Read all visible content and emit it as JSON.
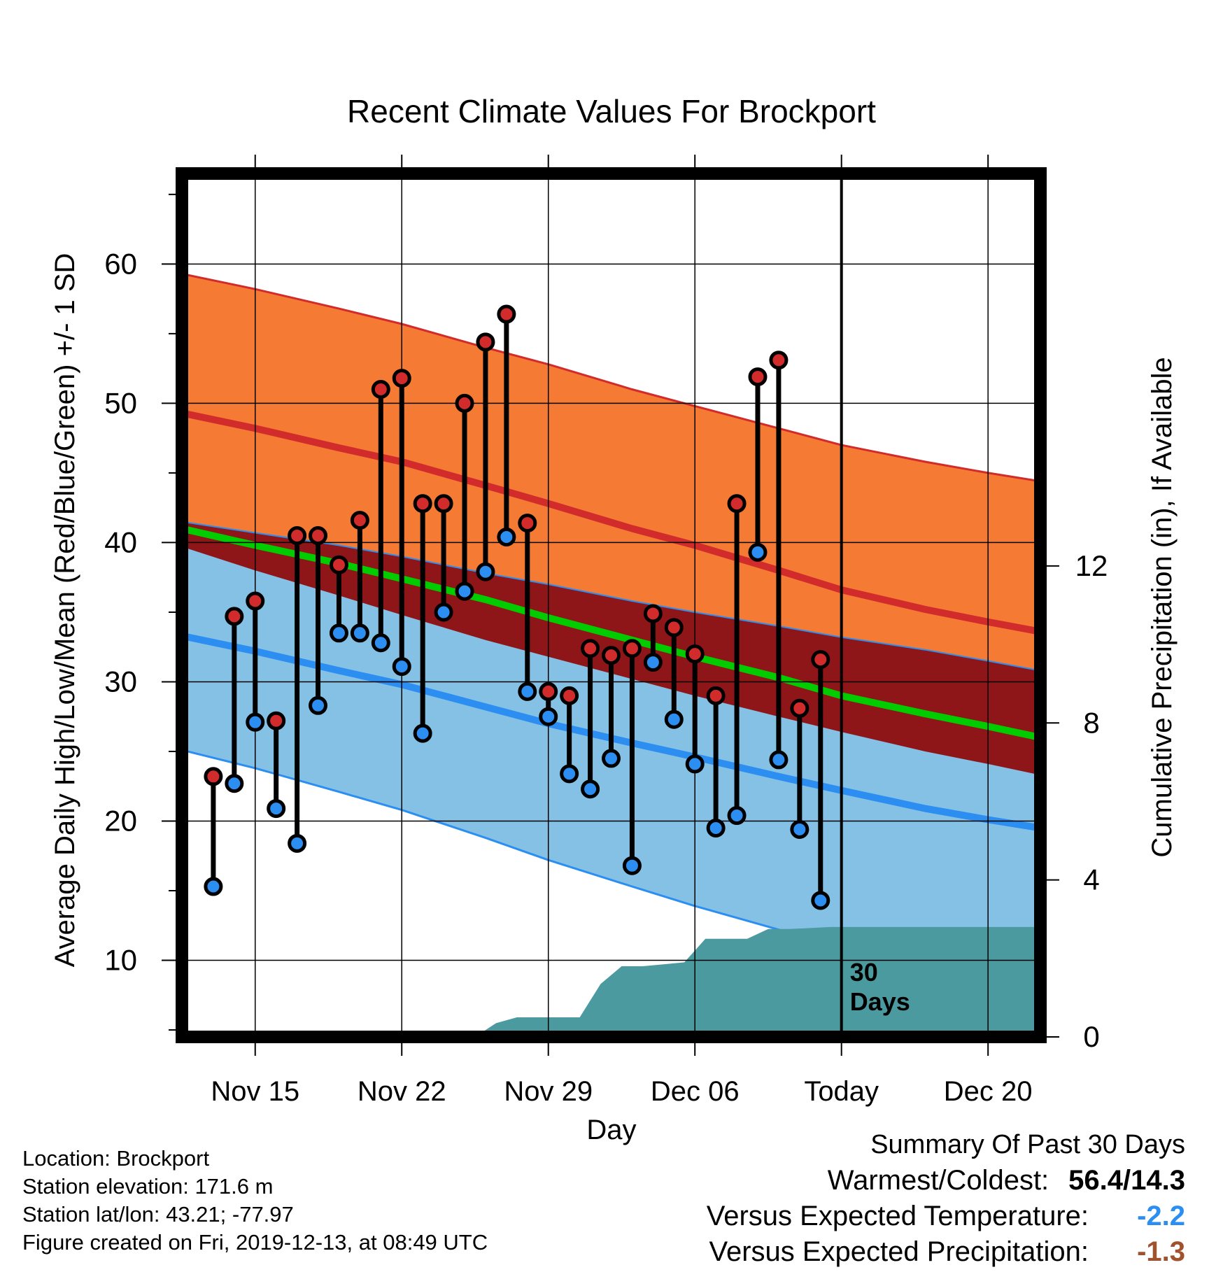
{
  "chart_data": {
    "type": "line",
    "title": "Recent Climate Values For Brockport",
    "xlabel": "Day",
    "ylabel": "Average Daily High/Low/Mean (Red/Blue/Green) +/- 1 SD",
    "ylabel_right": "Cumulative Precipitation (in), If Available",
    "x_ticks": [
      "Nov 15",
      "Nov 22",
      "Nov 29",
      "Dec 06",
      "Today",
      "Dec 20"
    ],
    "x_tick_days": [
      3,
      10,
      17,
      24,
      31,
      38
    ],
    "xlim_days": [
      -0.5,
      40.5
    ],
    "ylim": [
      4.5,
      66.5
    ],
    "y_ticks": [
      10,
      20,
      30,
      40,
      50,
      60
    ],
    "ylim_right": [
      0,
      22.0
    ],
    "y_ticks_right": [
      0,
      4,
      8,
      12
    ],
    "grid": true,
    "today_day": 31,
    "today_label": "30\nDays",
    "colors": {
      "high_band": "#f57a33",
      "high_line": "#d12b2b",
      "low_band": "#85c1e5",
      "low_line": "#2b8ef0",
      "overlap_band": "#8e1518",
      "mean_line": "#00cc00",
      "precip": "#4b9aa0",
      "high_marker": "#d12b2b",
      "low_marker": "#2b8ef0",
      "temp_anomaly": "#2b8ef0",
      "precip_anomaly": "#a0522d"
    },
    "normals": {
      "days": [
        -0.5,
        3,
        7,
        10,
        14,
        17,
        21,
        24,
        28,
        31,
        35,
        38,
        40.5
      ],
      "high_plus_sd": [
        59.3,
        58.2,
        56.8,
        55.7,
        54.0,
        52.8,
        51.0,
        49.8,
        48.2,
        47.0,
        45.8,
        45.0,
        44.4
      ],
      "high_mean": [
        49.3,
        48.2,
        46.8,
        45.8,
        44.1,
        42.8,
        41.0,
        39.8,
        38.0,
        36.6,
        35.2,
        34.3,
        33.6
      ],
      "high_minus_sd": [
        41.5,
        40.7,
        39.8,
        39.0,
        37.8,
        37.0,
        35.8,
        35.0,
        34.0,
        33.2,
        32.3,
        31.5,
        30.8
      ],
      "mean": [
        41.0,
        39.8,
        38.5,
        37.4,
        35.9,
        34.6,
        33.0,
        31.8,
        30.3,
        29.0,
        27.7,
        26.8,
        26.0
      ],
      "low_plus_sd": [
        39.7,
        38.0,
        36.2,
        34.8,
        33.0,
        31.8,
        30.2,
        29.0,
        27.5,
        26.4,
        25.0,
        24.1,
        23.3
      ],
      "low_mean": [
        33.3,
        32.2,
        30.8,
        29.8,
        28.2,
        27.0,
        25.6,
        24.6,
        23.2,
        22.2,
        20.9,
        20.1,
        19.5
      ],
      "low_minus_sd": [
        25.1,
        23.8,
        22.1,
        20.8,
        18.8,
        17.2,
        15.3,
        13.9,
        12.2,
        10.8,
        9.4,
        8.4,
        7.7
      ]
    },
    "series": [
      {
        "name": "High",
        "days": [
          1,
          2,
          3,
          4,
          5,
          6,
          7,
          8,
          9,
          10,
          11,
          12,
          13,
          14,
          15,
          16,
          17,
          18,
          19,
          20,
          21,
          22,
          23,
          24,
          25,
          26,
          27,
          28,
          29,
          30
        ],
        "values": [
          23.2,
          34.7,
          35.8,
          27.2,
          40.5,
          40.5,
          38.4,
          41.6,
          51.0,
          51.8,
          42.8,
          42.8,
          50.0,
          54.4,
          56.4,
          41.4,
          29.3,
          29.0,
          32.4,
          31.9,
          32.4,
          34.9,
          33.9,
          32.0,
          29.0,
          42.8,
          51.9,
          53.1,
          28.1,
          31.6
        ]
      },
      {
        "name": "Low",
        "days": [
          1,
          2,
          3,
          4,
          5,
          6,
          7,
          8,
          9,
          10,
          11,
          12,
          13,
          14,
          15,
          16,
          17,
          18,
          19,
          20,
          21,
          22,
          23,
          24,
          25,
          26,
          27,
          28,
          29,
          30
        ],
        "values": [
          15.3,
          22.7,
          27.1,
          20.9,
          18.4,
          28.3,
          33.5,
          33.5,
          32.8,
          31.1,
          26.3,
          35.0,
          36.5,
          37.9,
          40.4,
          29.3,
          27.5,
          23.4,
          22.3,
          24.5,
          16.8,
          31.4,
          27.3,
          24.1,
          19.5,
          20.4,
          39.3,
          24.4,
          19.4,
          14.3
        ]
      },
      {
        "name": "Cumulative Precipitation",
        "days": [
          -0.5,
          13.5,
          14.5,
          15.5,
          16.5,
          17,
          18.5,
          19.5,
          20.5,
          21.5,
          22.5,
          23.5,
          24.5,
          25.5,
          26.5,
          27.5,
          28.5,
          30.5,
          31,
          40.5
        ],
        "values": [
          0,
          0,
          0.35,
          0.5,
          0.5,
          0.5,
          0.5,
          1.35,
          1.8,
          1.8,
          1.85,
          1.9,
          2.5,
          2.5,
          2.5,
          2.75,
          2.75,
          2.8,
          2.8,
          2.8
        ]
      }
    ]
  },
  "info": {
    "location": "Location: Brockport",
    "elevation": "Station elevation: 171.6 m",
    "latlon": "Station lat/lon: 43.21; -77.97",
    "created": "Figure created on Fri, 2019-12-13, at 08:49 UTC"
  },
  "summary": {
    "title": "Summary Of Past 30 Days",
    "warm_cold_label": "Warmest/Coldest:",
    "warm_cold_value": "56.4/14.3",
    "temp_label": "Versus Expected Temperature:",
    "temp_value": "-2.2",
    "precip_label": "Versus Expected Precipitation:",
    "precip_value": "-1.3"
  }
}
